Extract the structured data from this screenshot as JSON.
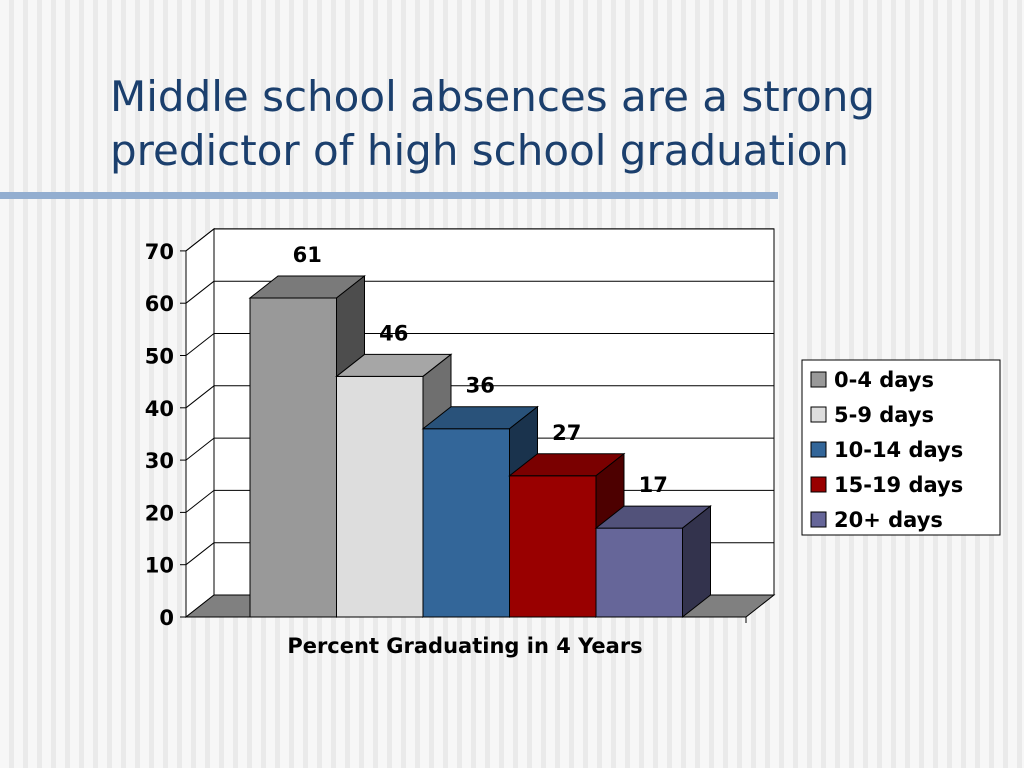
{
  "slide": {
    "title_line1": "Middle school absences are a strong",
    "title_line2": "predictor of high school graduation"
  },
  "chart_data": {
    "type": "bar",
    "title": "",
    "xlabel": "Percent Graduating in 4 Years",
    "ylabel": "",
    "ylim": [
      0,
      70
    ],
    "y_ticks": [
      0,
      10,
      20,
      30,
      40,
      50,
      60,
      70
    ],
    "grid": true,
    "legend_position": "right",
    "series": [
      {
        "name": "0-4 days",
        "values": [
          61
        ],
        "color": "#999999"
      },
      {
        "name": "5-9 days",
        "values": [
          46
        ],
        "color": "#dddddd"
      },
      {
        "name": "10-14 days",
        "values": [
          36
        ],
        "color": "#336699"
      },
      {
        "name": "15-19 days",
        "values": [
          27
        ],
        "color": "#990000"
      },
      {
        "name": "20+ days",
        "values": [
          17
        ],
        "color": "#666699"
      }
    ],
    "data_labels": [
      "61",
      "46",
      "36",
      "27",
      "17"
    ]
  }
}
